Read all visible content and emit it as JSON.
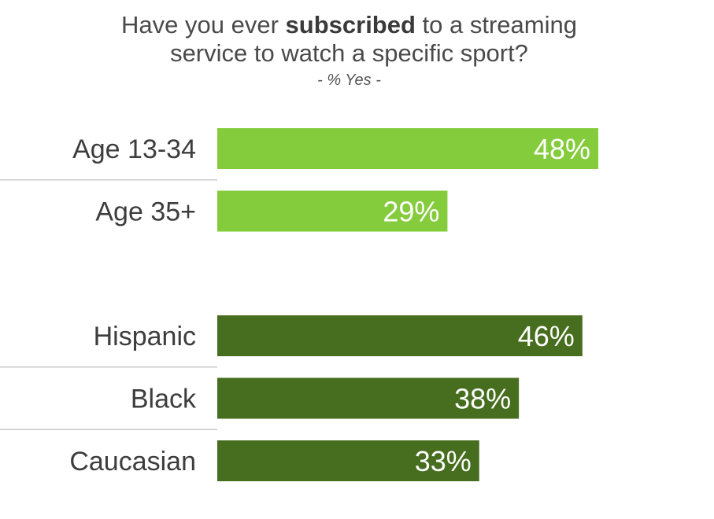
{
  "header": {
    "title_pre": "Have you ever ",
    "title_bold": "subscribed",
    "title_post": " to a streaming",
    "title_line2": "service to watch a specific sport?",
    "subtitle": "- % Yes -"
  },
  "chart_data": {
    "type": "bar",
    "orientation": "horizontal",
    "unit": "%",
    "xlim": [
      0,
      48
    ],
    "grid": false,
    "legend": "none",
    "groups": [
      {
        "color": "#84cc3c",
        "categories": [
          "Age 13-34",
          "Age 35+"
        ],
        "values": [
          48,
          29
        ],
        "labels": [
          "48%",
          "29%"
        ]
      },
      {
        "color": "#466e1e",
        "categories": [
          "Hispanic",
          "Black",
          "Caucasian"
        ],
        "values": [
          46,
          38,
          33
        ],
        "labels": [
          "46%",
          "38%",
          "33%"
        ]
      }
    ]
  }
}
